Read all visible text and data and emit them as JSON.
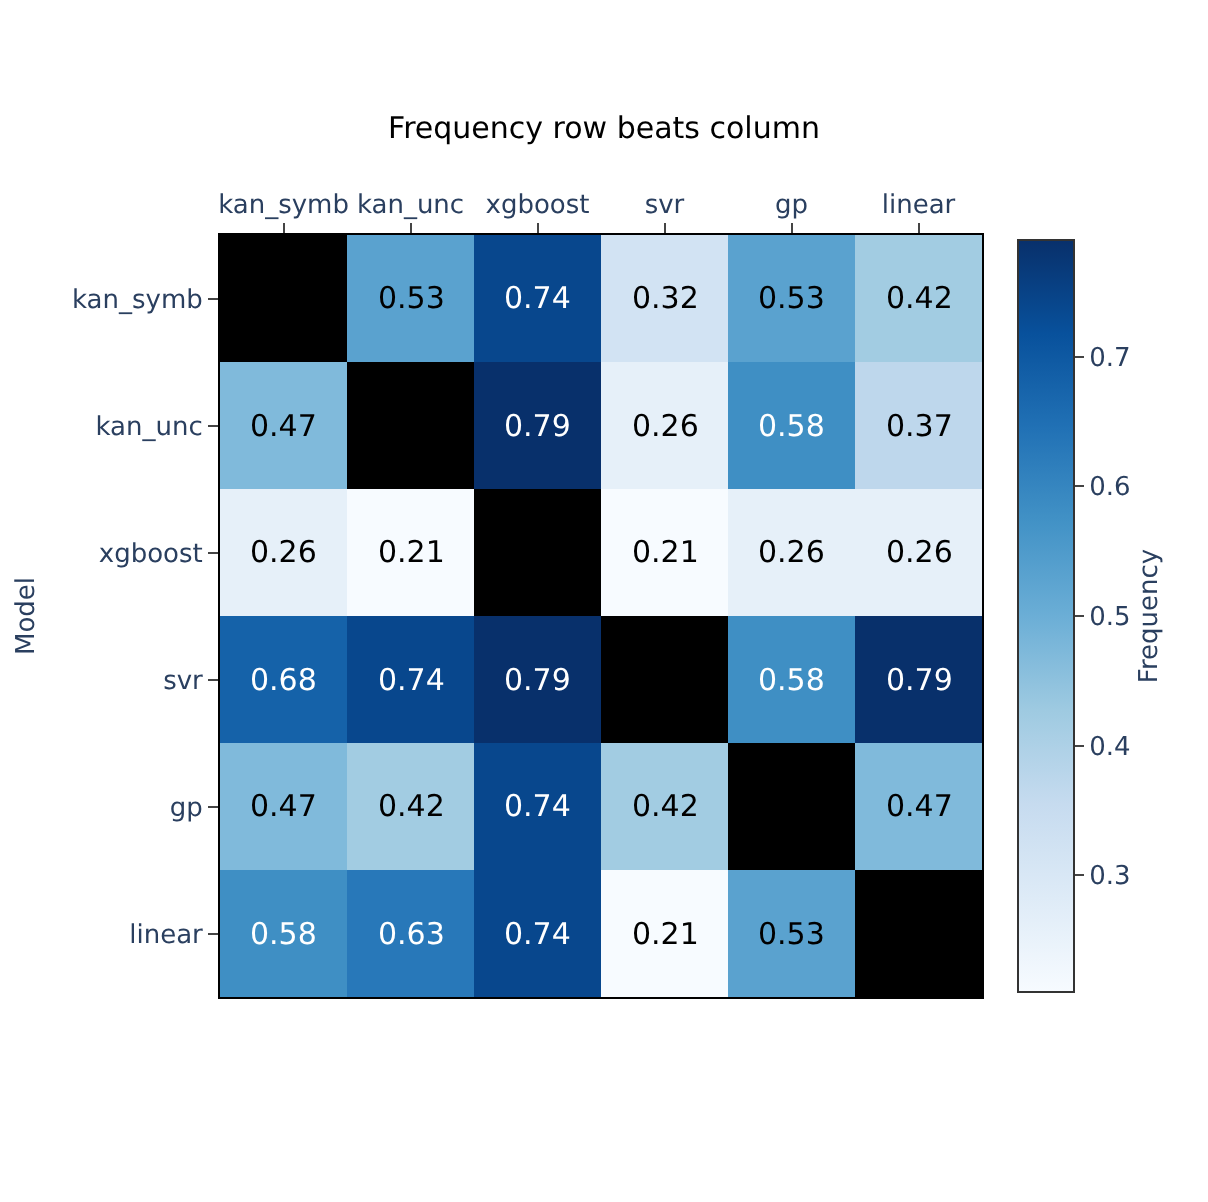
{
  "chart_data": {
    "type": "heatmap",
    "title": "Frequency row beats column",
    "ylabel": "Model",
    "clabel": "Frequency",
    "categories": [
      "kan_symb",
      "kan_unc",
      "xgboost",
      "svr",
      "gp",
      "linear"
    ],
    "y_categories": [
      "kan_symb",
      "kan_unc",
      "xgboost",
      "svr",
      "gp",
      "linear"
    ],
    "cells": [
      [
        null,
        0.53,
        0.74,
        0.32,
        0.53,
        0.42
      ],
      [
        0.47,
        null,
        0.79,
        0.26,
        0.58,
        0.37
      ],
      [
        0.26,
        0.21,
        null,
        0.21,
        0.26,
        0.26
      ],
      [
        0.68,
        0.74,
        0.79,
        null,
        0.58,
        0.79
      ],
      [
        0.47,
        0.42,
        0.74,
        0.42,
        null,
        0.47
      ],
      [
        0.58,
        0.63,
        0.74,
        0.21,
        0.53,
        null
      ]
    ],
    "clim": [
      0.21,
      0.79
    ],
    "cticks": [
      0.3,
      0.4,
      0.5,
      0.6,
      0.7
    ],
    "data_labels": true
  }
}
